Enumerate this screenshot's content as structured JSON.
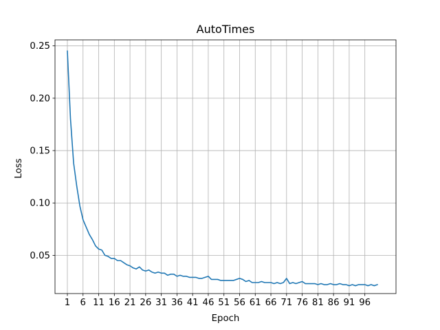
{
  "chart_data": {
    "type": "line",
    "title": "AutoTimes",
    "xlabel": "Epoch",
    "ylabel": "Loss",
    "grid": true,
    "xlim": [
      -3.95,
      104.95
    ],
    "ylim": [
      0.0135,
      0.2557
    ],
    "x_ticks": [
      1,
      6,
      11,
      16,
      21,
      26,
      31,
      36,
      41,
      46,
      51,
      56,
      61,
      66,
      71,
      76,
      81,
      86,
      91,
      96
    ],
    "x_tick_labels": [
      "1",
      "6",
      "11",
      "16",
      "21",
      "26",
      "31",
      "36",
      "41",
      "46",
      "51",
      "56",
      "61",
      "66",
      "71",
      "76",
      "81",
      "86",
      "91",
      "96"
    ],
    "y_ticks": [
      0.05,
      0.1,
      0.15,
      0.2,
      0.25
    ],
    "y_tick_labels": [
      "0.05",
      "0.10",
      "0.15",
      "0.20",
      "0.25"
    ],
    "series": [
      {
        "color": "#1f77b4",
        "x": [
          0,
          1,
          2,
          3,
          4,
          5,
          6,
          7,
          8,
          9,
          10,
          11,
          12,
          13,
          14,
          15,
          16,
          17,
          18,
          19,
          20,
          21,
          22,
          23,
          24,
          25,
          26,
          27,
          28,
          29,
          30,
          31,
          32,
          33,
          34,
          35,
          36,
          37,
          38,
          39,
          40,
          41,
          42,
          43,
          44,
          45,
          46,
          47,
          48,
          49,
          50,
          51,
          52,
          53,
          54,
          55,
          56,
          57,
          58,
          59,
          60,
          61,
          62,
          63,
          64,
          65,
          66,
          67,
          68,
          69,
          70,
          71,
          72,
          73,
          74,
          75,
          76,
          77,
          78,
          79,
          80,
          81,
          82,
          83,
          84,
          85,
          86,
          87,
          88,
          89,
          90,
          91,
          92,
          93,
          94,
          95,
          96,
          97,
          98,
          99
        ],
        "y": [
          0.245,
          0.18,
          0.138,
          0.116,
          0.097,
          0.084,
          0.077,
          0.07,
          0.065,
          0.059,
          0.056,
          0.055,
          0.05,
          0.049,
          0.047,
          0.047,
          0.045,
          0.045,
          0.043,
          0.041,
          0.04,
          0.038,
          0.037,
          0.039,
          0.036,
          0.035,
          0.036,
          0.034,
          0.033,
          0.034,
          0.033,
          0.033,
          0.031,
          0.032,
          0.032,
          0.03,
          0.031,
          0.03,
          0.03,
          0.029,
          0.029,
          0.029,
          0.028,
          0.028,
          0.029,
          0.03,
          0.027,
          0.027,
          0.027,
          0.026,
          0.026,
          0.026,
          0.026,
          0.026,
          0.027,
          0.028,
          0.027,
          0.025,
          0.026,
          0.024,
          0.024,
          0.024,
          0.025,
          0.024,
          0.024,
          0.024,
          0.023,
          0.024,
          0.023,
          0.024,
          0.028,
          0.023,
          0.024,
          0.023,
          0.024,
          0.025,
          0.023,
          0.023,
          0.023,
          0.023,
          0.022,
          0.023,
          0.022,
          0.022,
          0.023,
          0.022,
          0.022,
          0.023,
          0.022,
          0.022,
          0.021,
          0.022,
          0.021,
          0.022,
          0.022,
          0.022,
          0.021,
          0.022,
          0.021,
          0.022
        ]
      }
    ]
  }
}
